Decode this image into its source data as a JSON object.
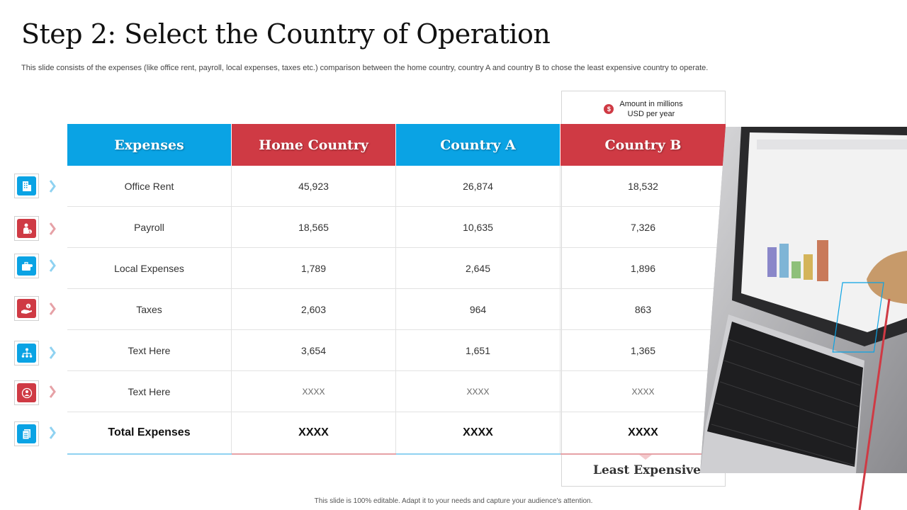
{
  "title": "Step 2: Select the Country of Operation",
  "subtitle": "This slide consists of the expenses (like office rent, payroll, local expenses, taxes etc.) comparison between the home country, country A and country B to chose the least expensive country to operate.",
  "note": {
    "icon": "dollar-icon",
    "icon_glyph": "$",
    "line1": "Amount in millions",
    "line2": "USD per year"
  },
  "colors": {
    "blue": "#0aa3e4",
    "red": "#cf3a44"
  },
  "table": {
    "headers": [
      "Expenses",
      "Home Country",
      "Country A",
      "Country B"
    ],
    "rows": [
      [
        "Office Rent",
        "45,923",
        "26,874",
        "18,532"
      ],
      [
        "Payroll",
        "18,565",
        "10,635",
        "7,326"
      ],
      [
        "Local Expenses",
        "1,789",
        "2,645",
        "1,896"
      ],
      [
        "Taxes",
        "2,603",
        "964",
        "863"
      ],
      [
        "Text Here",
        "3,654",
        "1,651",
        "1,365"
      ],
      [
        "Text Here",
        "XXXX",
        "XXXX",
        "XXXX"
      ]
    ],
    "total": [
      "Total Expenses",
      "XXXX",
      "XXXX",
      "XXXX"
    ]
  },
  "least_expensive_label": "Least Expensive",
  "side_icons": [
    "building-icon",
    "payroll-icon",
    "briefcase-icon",
    "hand-money-icon",
    "org-chart-icon",
    "globe-person-icon",
    "document-icon"
  ],
  "footer": "This slide is 100% editable. Adapt it to your needs and capture your audience's attention."
}
